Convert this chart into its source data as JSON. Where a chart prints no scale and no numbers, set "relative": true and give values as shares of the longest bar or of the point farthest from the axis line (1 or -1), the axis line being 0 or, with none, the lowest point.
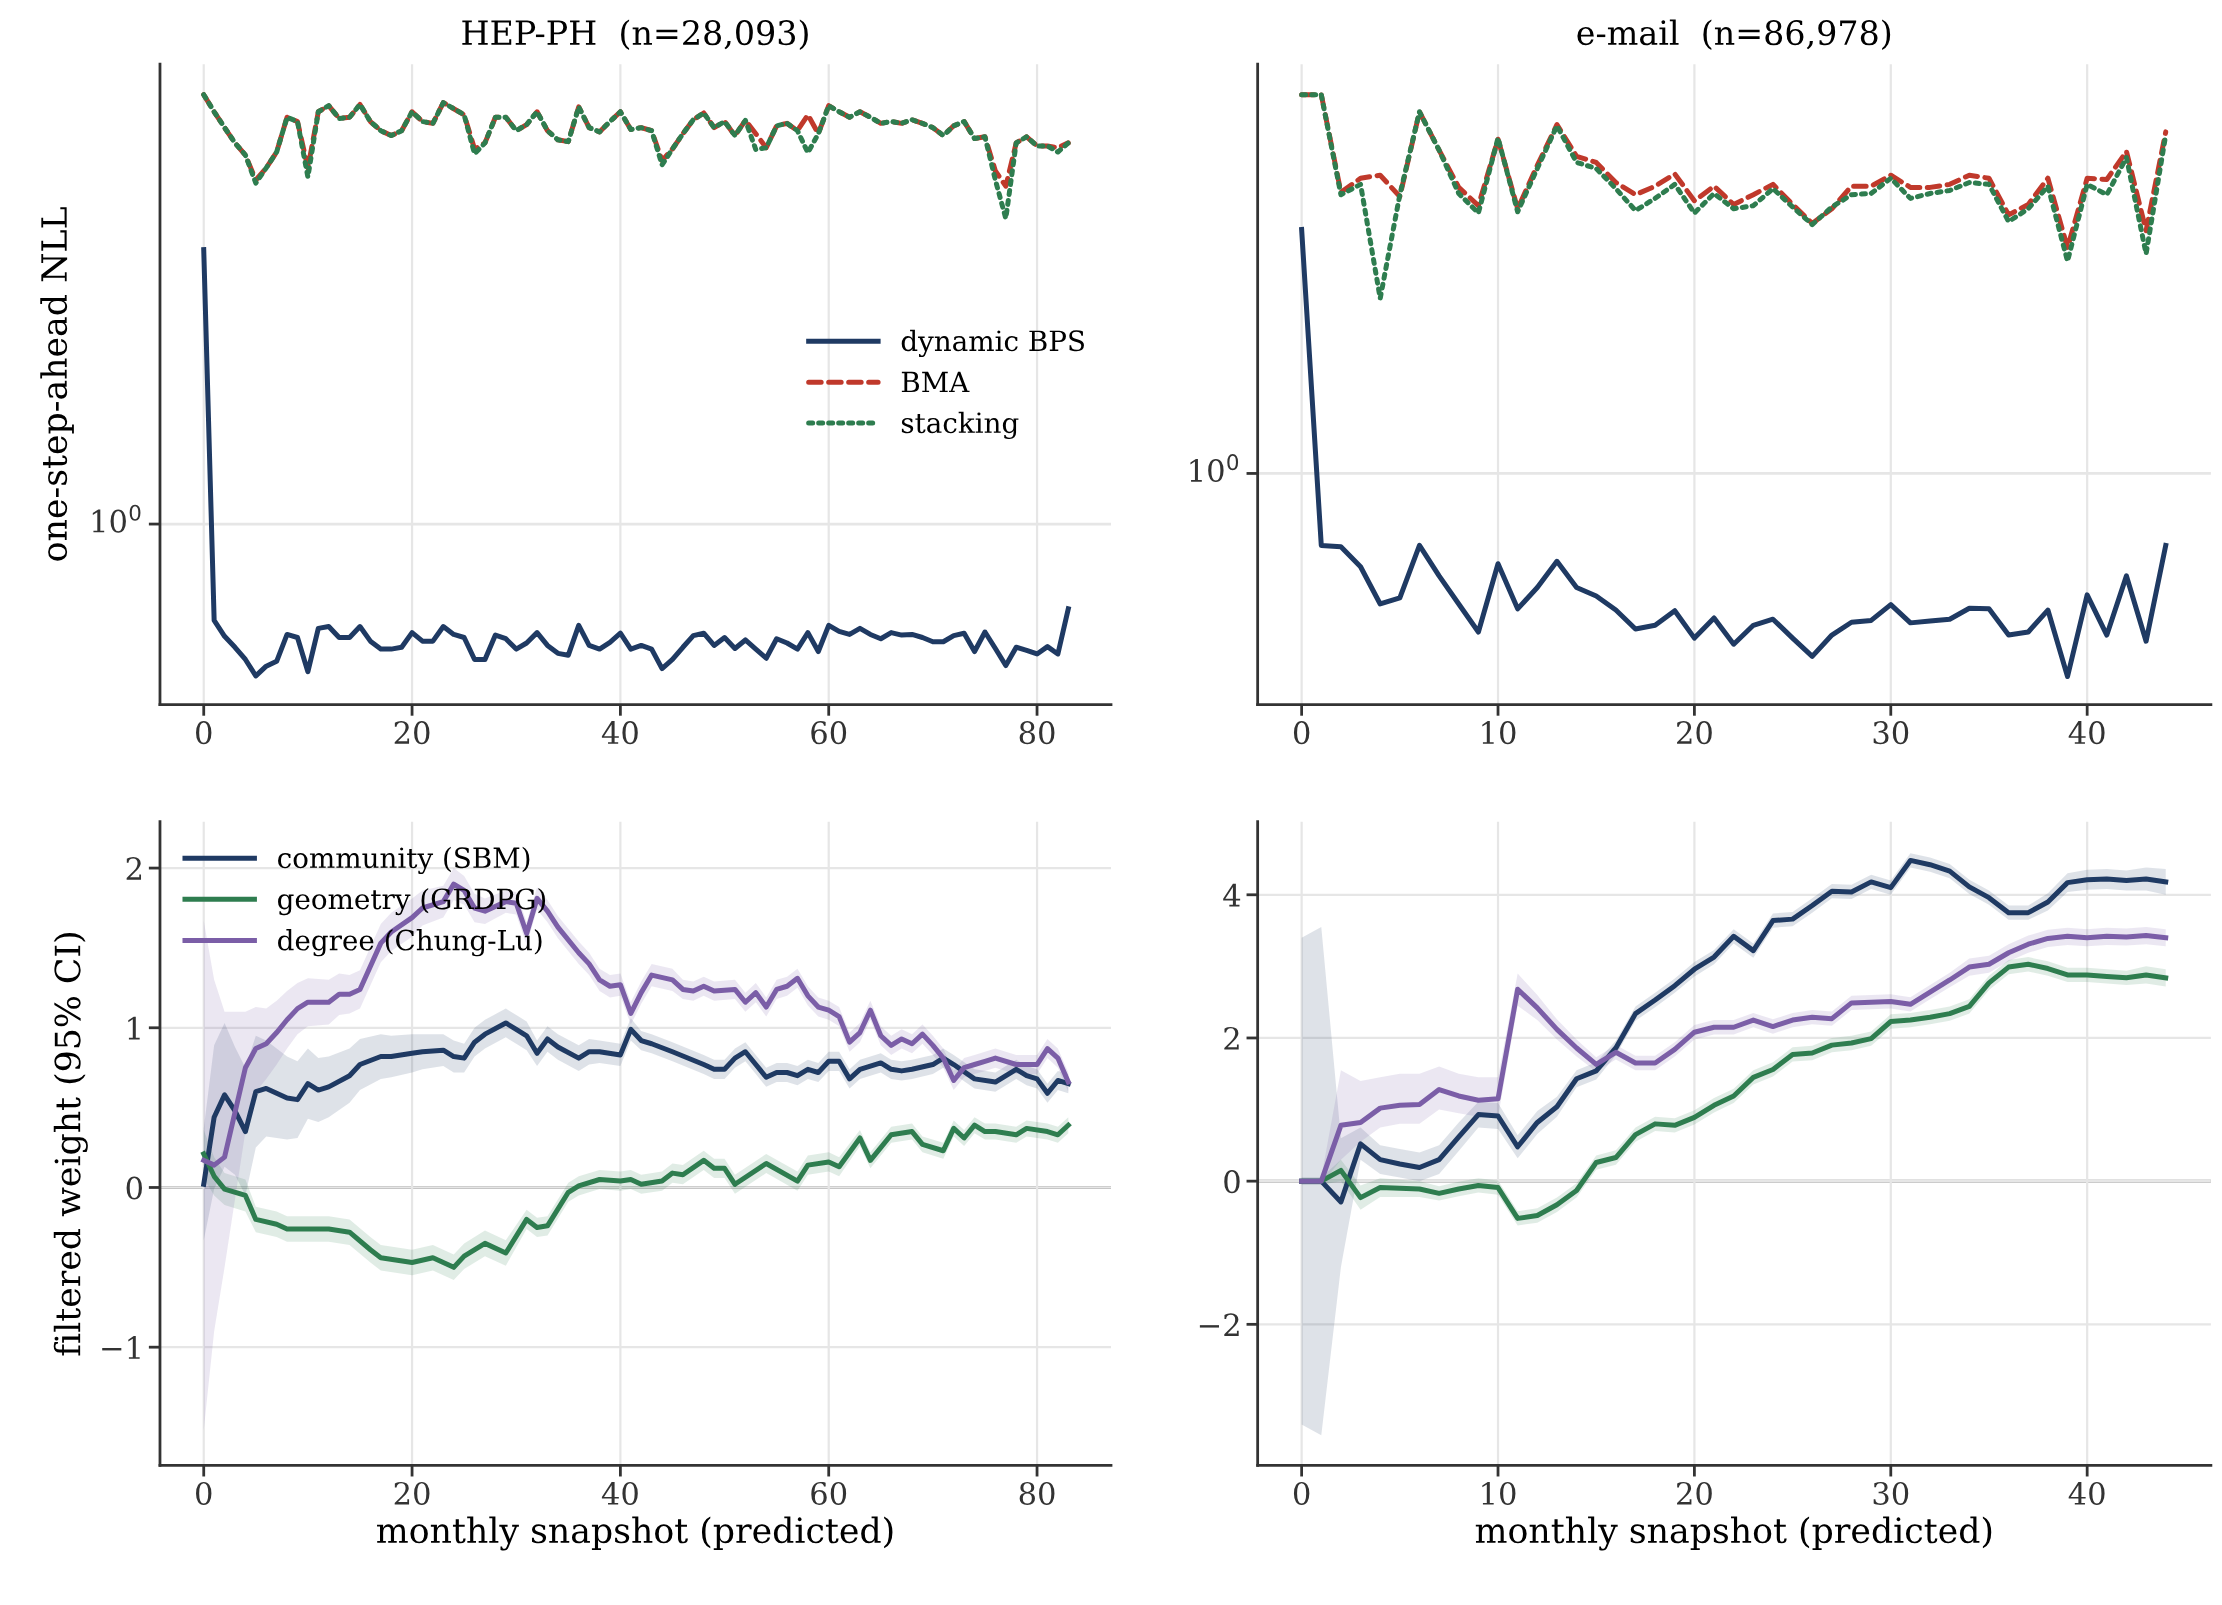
{
  "chart_data": [
    {
      "type": "line",
      "title": "HEP-PH  (n=28,093)",
      "ylabel": "one-step-ahead NLL",
      "relative": true,
      "grid": "x",
      "legend": "right",
      "x": [
        0,
        1,
        2,
        3,
        4,
        5,
        6,
        7,
        8,
        9,
        10,
        11,
        12,
        13,
        14,
        15,
        16,
        17,
        18,
        19,
        20,
        21,
        22,
        23,
        24,
        25,
        26,
        27,
        28,
        29,
        30,
        31,
        32,
        33,
        34,
        35,
        36,
        37,
        38,
        39,
        40,
        41,
        42,
        43,
        44,
        45,
        46,
        47,
        48,
        49,
        50,
        51,
        52,
        53,
        54,
        55,
        56,
        57,
        58,
        59,
        60,
        61,
        62,
        63,
        64,
        65,
        66,
        67,
        68,
        69,
        70,
        71,
        72,
        73,
        74,
        75,
        76,
        77,
        78,
        79,
        80,
        81,
        82,
        83
      ],
      "xlim": [
        -4.2,
        87.1
      ],
      "xticks": [
        0,
        20,
        40,
        60,
        80
      ],
      "ref_lines": [
        {
          "axis": "y",
          "value": 0.296,
          "label": "10$^{0}$",
          "color": "#e6e6e6"
        }
      ],
      "series": [
        {
          "name": "dynamic BPS",
          "color": "#1f3a63",
          "line_style": "solid",
          "values": [
            0.746,
            0.138,
            0.112,
            0.094,
            0.074,
            0.047,
            0.063,
            0.071,
            0.115,
            0.11,
            0.054,
            0.125,
            0.128,
            0.11,
            0.11,
            0.128,
            0.104,
            0.091,
            0.091,
            0.094,
            0.118,
            0.104,
            0.104,
            0.128,
            0.115,
            0.11,
            0.074,
            0.074,
            0.114,
            0.108,
            0.091,
            0.101,
            0.118,
            0.097,
            0.084,
            0.081,
            0.13,
            0.097,
            0.091,
            0.102,
            0.117,
            0.091,
            0.097,
            0.091,
            0.059,
            0.074,
            0.094,
            0.113,
            0.117,
            0.097,
            0.11,
            0.092,
            0.106,
            0.091,
            0.076,
            0.108,
            0.101,
            0.091,
            0.118,
            0.087,
            0.13,
            0.12,
            0.115,
            0.125,
            0.115,
            0.108,
            0.118,
            0.114,
            0.115,
            0.11,
            0.103,
            0.103,
            0.113,
            0.117,
            0.087,
            0.119,
            0.092,
            0.064,
            0.094,
            0.089,
            0.083,
            0.095,
            0.083,
            0.157
          ]
        },
        {
          "name": "BMA",
          "color": "#c0392b",
          "line_style": "dashed",
          "values": [
            1.0,
            0.972,
            0.946,
            0.921,
            0.901,
            0.86,
            0.88,
            0.906,
            0.963,
            0.956,
            0.88,
            0.972,
            0.982,
            0.961,
            0.963,
            0.984,
            0.956,
            0.941,
            0.933,
            0.941,
            0.972,
            0.956,
            0.953,
            0.987,
            0.977,
            0.967,
            0.911,
            0.921,
            0.963,
            0.963,
            0.941,
            0.951,
            0.972,
            0.941,
            0.926,
            0.923,
            0.98,
            0.946,
            0.939,
            0.956,
            0.972,
            0.943,
            0.946,
            0.941,
            0.892,
            0.911,
            0.936,
            0.959,
            0.97,
            0.946,
            0.956,
            0.933,
            0.958,
            0.936,
            0.913,
            0.949,
            0.953,
            0.941,
            0.967,
            0.936,
            0.982,
            0.972,
            0.963,
            0.972,
            0.963,
            0.953,
            0.956,
            0.953,
            0.959,
            0.953,
            0.946,
            0.933,
            0.949,
            0.956,
            0.928,
            0.931,
            0.875,
            0.85,
            0.921,
            0.931,
            0.916,
            0.916,
            0.913,
            0.921
          ]
        },
        {
          "name": "stacking",
          "color": "#2e7d4f",
          "line_style": "dotted",
          "values": [
            1.0,
            0.972,
            0.946,
            0.921,
            0.901,
            0.855,
            0.88,
            0.906,
            0.963,
            0.956,
            0.865,
            0.972,
            0.982,
            0.961,
            0.963,
            0.984,
            0.956,
            0.941,
            0.933,
            0.941,
            0.972,
            0.956,
            0.953,
            0.987,
            0.977,
            0.967,
            0.903,
            0.921,
            0.963,
            0.963,
            0.941,
            0.951,
            0.972,
            0.941,
            0.926,
            0.923,
            0.98,
            0.946,
            0.939,
            0.956,
            0.972,
            0.943,
            0.946,
            0.941,
            0.885,
            0.911,
            0.936,
            0.959,
            0.97,
            0.946,
            0.956,
            0.933,
            0.958,
            0.91,
            0.913,
            0.949,
            0.953,
            0.941,
            0.905,
            0.936,
            0.982,
            0.972,
            0.963,
            0.972,
            0.963,
            0.953,
            0.956,
            0.953,
            0.959,
            0.953,
            0.946,
            0.933,
            0.949,
            0.956,
            0.928,
            0.931,
            0.86,
            0.797,
            0.921,
            0.931,
            0.916,
            0.916,
            0.906,
            0.921
          ]
        }
      ]
    },
    {
      "type": "line",
      "title": "e-mail  (n=86,978)",
      "relative": true,
      "grid": "x",
      "x": [
        0,
        1,
        2,
        3,
        4,
        5,
        6,
        7,
        8,
        9,
        10,
        11,
        12,
        13,
        14,
        15,
        16,
        17,
        18,
        19,
        20,
        21,
        22,
        23,
        24,
        25,
        26,
        27,
        28,
        29,
        30,
        31,
        32,
        33,
        34,
        35,
        36,
        37,
        38,
        39,
        40,
        41,
        42,
        43,
        44
      ],
      "xlim": [
        -2.24,
        46.3
      ],
      "xticks": [
        0,
        10,
        20,
        30,
        40
      ],
      "ref_lines": [
        {
          "axis": "y",
          "value": 0.379,
          "label": "10$^{0}$",
          "color": "#e6e6e6"
        }
      ],
      "series": [
        {
          "color": "#1f3a63",
          "line_style": "solid",
          "values": [
            0.779,
            0.261,
            0.259,
            0.226,
            0.165,
            0.175,
            0.261,
            0.211,
            0.165,
            0.119,
            0.231,
            0.157,
            0.192,
            0.235,
            0.192,
            0.178,
            0.155,
            0.124,
            0.13,
            0.154,
            0.109,
            0.142,
            0.099,
            0.13,
            0.14,
            0.109,
            0.079,
            0.114,
            0.135,
            0.138,
            0.164,
            0.134,
            0.137,
            0.14,
            0.158,
            0.157,
            0.114,
            0.119,
            0.155,
            0.046,
            0.18,
            0.114,
            0.211,
            0.104,
            0.261
          ]
        },
        {
          "color": "#c0392b",
          "line_style": "dashed",
          "values": [
            1.0,
            1.0,
            0.84,
            0.863,
            0.868,
            0.833,
            0.972,
            0.909,
            0.848,
            0.818,
            0.927,
            0.813,
            0.884,
            0.951,
            0.899,
            0.889,
            0.856,
            0.836,
            0.85,
            0.87,
            0.826,
            0.85,
            0.82,
            0.836,
            0.853,
            0.82,
            0.789,
            0.813,
            0.85,
            0.85,
            0.868,
            0.848,
            0.848,
            0.853,
            0.868,
            0.863,
            0.803,
            0.82,
            0.863,
            0.749,
            0.863,
            0.861,
            0.907,
            0.777,
            0.939
          ]
        },
        {
          "color": "#2e7d4f",
          "line_style": "dotted",
          "values": [
            1.0,
            1.0,
            0.836,
            0.853,
            0.666,
            0.836,
            0.972,
            0.909,
            0.838,
            0.806,
            0.929,
            0.808,
            0.879,
            0.949,
            0.889,
            0.879,
            0.846,
            0.81,
            0.83,
            0.853,
            0.806,
            0.838,
            0.813,
            0.818,
            0.846,
            0.816,
            0.787,
            0.816,
            0.836,
            0.838,
            0.863,
            0.83,
            0.838,
            0.843,
            0.856,
            0.853,
            0.792,
            0.813,
            0.85,
            0.727,
            0.853,
            0.836,
            0.897,
            0.739,
            0.934
          ]
        }
      ]
    },
    {
      "type": "line",
      "xlabel": "monthly snapshot (predicted)",
      "ylabel": "filtered weight (95% CI)",
      "grid": true,
      "legend": "top left",
      "xlim": [
        -4.2,
        87.1
      ],
      "xticks": [
        0,
        20,
        40,
        60,
        80
      ],
      "ylim": [
        -1.74,
        2.29
      ],
      "yticks": [
        {
          "value": -1,
          "label": "−1"
        },
        0,
        1,
        2
      ],
      "ref_lines": [
        {
          "axis": "y",
          "value": 0,
          "color": "#888888"
        }
      ],
      "series": [
        {
          "name": "community (SBM)",
          "color": "#1f3a63",
          "x": [
            0,
            1,
            2,
            3,
            4,
            5,
            6,
            7,
            8,
            9,
            10,
            11,
            12,
            14,
            15,
            17,
            18,
            20,
            21,
            23,
            24,
            25,
            26,
            27,
            29,
            30,
            31,
            32,
            33,
            34,
            36,
            37,
            38,
            40,
            41,
            42,
            43,
            45,
            48,
            49,
            50,
            51,
            52,
            53,
            54,
            55,
            56,
            57,
            58,
            59,
            60,
            61,
            62,
            63,
            65,
            66,
            67,
            68,
            70,
            71,
            72,
            74,
            76,
            78,
            79,
            80,
            81,
            82,
            83
          ],
          "values": [
            0.02,
            0.44,
            0.58,
            0.48,
            0.35,
            0.6,
            0.62,
            0.59,
            0.56,
            0.55,
            0.65,
            0.61,
            0.63,
            0.7,
            0.77,
            0.82,
            0.82,
            0.84,
            0.85,
            0.86,
            0.82,
            0.81,
            0.91,
            0.96,
            1.03,
            0.99,
            0.95,
            0.84,
            0.93,
            0.88,
            0.81,
            0.85,
            0.85,
            0.83,
            0.99,
            0.92,
            0.9,
            0.85,
            0.77,
            0.74,
            0.74,
            0.81,
            0.85,
            0.77,
            0.69,
            0.72,
            0.72,
            0.7,
            0.74,
            0.72,
            0.79,
            0.79,
            0.68,
            0.74,
            0.78,
            0.74,
            0.73,
            0.74,
            0.77,
            0.81,
            0.77,
            0.68,
            0.66,
            0.74,
            0.7,
            0.68,
            0.59,
            0.67,
            0.65
          ],
          "lower": [
            -0.33,
            -0.01,
            0.13,
            0.08,
            -0.05,
            0.25,
            0.32,
            0.31,
            0.3,
            0.31,
            0.43,
            0.41,
            0.44,
            0.53,
            0.61,
            0.68,
            0.69,
            0.72,
            0.74,
            0.76,
            0.72,
            0.72,
            0.82,
            0.87,
            0.94,
            0.9,
            0.86,
            0.76,
            0.85,
            0.8,
            0.73,
            0.77,
            0.78,
            0.76,
            0.92,
            0.86,
            0.84,
            0.79,
            0.71,
            0.68,
            0.68,
            0.75,
            0.79,
            0.71,
            0.63,
            0.66,
            0.66,
            0.64,
            0.68,
            0.66,
            0.73,
            0.73,
            0.62,
            0.68,
            0.72,
            0.68,
            0.67,
            0.68,
            0.71,
            0.75,
            0.71,
            0.62,
            0.6,
            0.68,
            0.64,
            0.62,
            0.53,
            0.61,
            0.59
          ],
          "upper": [
            0.37,
            0.89,
            1.03,
            0.88,
            0.75,
            0.95,
            0.92,
            0.87,
            0.82,
            0.79,
            0.87,
            0.81,
            0.82,
            0.87,
            0.93,
            0.96,
            0.95,
            0.96,
            0.96,
            0.96,
            0.92,
            0.9,
            1.0,
            1.05,
            1.12,
            1.08,
            1.04,
            0.92,
            1.01,
            0.96,
            0.89,
            0.93,
            0.92,
            0.9,
            1.06,
            0.98,
            0.96,
            0.91,
            0.83,
            0.8,
            0.8,
            0.87,
            0.91,
            0.83,
            0.75,
            0.78,
            0.78,
            0.76,
            0.8,
            0.78,
            0.85,
            0.85,
            0.74,
            0.8,
            0.84,
            0.8,
            0.79,
            0.8,
            0.83,
            0.87,
            0.83,
            0.74,
            0.72,
            0.8,
            0.76,
            0.74,
            0.65,
            0.73,
            0.71
          ]
        },
        {
          "name": "geometry (GRDPG)",
          "color": "#2e7d4f",
          "x": [
            0,
            1,
            2,
            4,
            5,
            7,
            8,
            10,
            12,
            14,
            16,
            17,
            20,
            22,
            24,
            25,
            27,
            29,
            31,
            32,
            33,
            35,
            36,
            38,
            40,
            41,
            42,
            44,
            45,
            46,
            48,
            49,
            50,
            51,
            54,
            57,
            58,
            60,
            61,
            63,
            64,
            66,
            68,
            69,
            71,
            72,
            73,
            74,
            75,
            76,
            78,
            79,
            81,
            82,
            83
          ],
          "values": [
            0.21,
            0.07,
            -0.01,
            -0.05,
            -0.2,
            -0.23,
            -0.26,
            -0.26,
            -0.26,
            -0.28,
            -0.39,
            -0.44,
            -0.47,
            -0.44,
            -0.5,
            -0.43,
            -0.35,
            -0.41,
            -0.2,
            -0.25,
            -0.24,
            -0.03,
            0.01,
            0.05,
            0.04,
            0.05,
            0.02,
            0.04,
            0.09,
            0.08,
            0.17,
            0.12,
            0.12,
            0.02,
            0.15,
            0.04,
            0.14,
            0.16,
            0.13,
            0.31,
            0.17,
            0.33,
            0.35,
            0.27,
            0.23,
            0.37,
            0.31,
            0.39,
            0.35,
            0.35,
            0.33,
            0.37,
            0.35,
            0.33,
            0.39
          ],
          "lower": [
            0.06,
            -0.05,
            -0.11,
            -0.15,
            -0.28,
            -0.31,
            -0.34,
            -0.34,
            -0.34,
            -0.36,
            -0.47,
            -0.52,
            -0.55,
            -0.52,
            -0.58,
            -0.51,
            -0.43,
            -0.49,
            -0.26,
            -0.31,
            -0.3,
            -0.09,
            -0.05,
            -0.01,
            -0.02,
            -0.01,
            -0.04,
            -0.02,
            0.03,
            0.02,
            0.11,
            0.06,
            0.06,
            -0.04,
            0.09,
            -0.02,
            0.08,
            0.1,
            0.07,
            0.26,
            0.12,
            0.28,
            0.3,
            0.22,
            0.18,
            0.32,
            0.26,
            0.34,
            0.3,
            0.3,
            0.28,
            0.32,
            0.3,
            0.28,
            0.34
          ],
          "upper": [
            0.36,
            0.19,
            0.09,
            0.05,
            -0.12,
            -0.15,
            -0.18,
            -0.18,
            -0.18,
            -0.2,
            -0.31,
            -0.36,
            -0.39,
            -0.36,
            -0.42,
            -0.35,
            -0.27,
            -0.33,
            -0.14,
            -0.19,
            -0.18,
            0.03,
            0.07,
            0.11,
            0.1,
            0.11,
            0.08,
            0.1,
            0.15,
            0.14,
            0.23,
            0.18,
            0.18,
            0.08,
            0.21,
            0.1,
            0.2,
            0.22,
            0.19,
            0.36,
            0.22,
            0.38,
            0.4,
            0.32,
            0.28,
            0.42,
            0.36,
            0.44,
            0.4,
            0.4,
            0.38,
            0.42,
            0.4,
            0.38,
            0.44
          ]
        },
        {
          "name": "degree (Chung-Lu)",
          "color": "#7b5ea7",
          "x": [
            0,
            1,
            2,
            4,
            5,
            6,
            7,
            8,
            9,
            10,
            12,
            13,
            14,
            15,
            17,
            18,
            20,
            21,
            23,
            24,
            25,
            26,
            27,
            29,
            30,
            31,
            32,
            33,
            34,
            36,
            37,
            38,
            39,
            40,
            41,
            42,
            43,
            45,
            46,
            47,
            48,
            49,
            51,
            52,
            53,
            54,
            55,
            56,
            57,
            58,
            59,
            60,
            61,
            62,
            63,
            64,
            65,
            66,
            67,
            68,
            69,
            70,
            71,
            72,
            73,
            74,
            75,
            76,
            78,
            79,
            80,
            81,
            82,
            83
          ],
          "values": [
            0.17,
            0.14,
            0.19,
            0.75,
            0.87,
            0.9,
            0.97,
            1.05,
            1.12,
            1.16,
            1.16,
            1.21,
            1.21,
            1.24,
            1.53,
            1.6,
            1.69,
            1.75,
            1.79,
            1.9,
            1.86,
            1.75,
            1.73,
            1.79,
            1.78,
            1.59,
            1.81,
            1.73,
            1.63,
            1.47,
            1.4,
            1.3,
            1.26,
            1.27,
            1.09,
            1.22,
            1.33,
            1.3,
            1.24,
            1.23,
            1.26,
            1.23,
            1.24,
            1.16,
            1.22,
            1.13,
            1.24,
            1.26,
            1.31,
            1.2,
            1.13,
            1.11,
            1.07,
            0.91,
            0.97,
            1.11,
            0.95,
            0.89,
            0.93,
            0.9,
            0.96,
            0.89,
            0.81,
            0.67,
            0.75,
            0.77,
            0.79,
            0.81,
            0.77,
            0.77,
            0.77,
            0.87,
            0.81,
            0.66
          ],
          "lower": [
            -1.52,
            -0.9,
            -0.5,
            0.35,
            0.6,
            0.68,
            0.77,
            0.87,
            0.96,
            1.01,
            1.02,
            1.08,
            1.09,
            1.12,
            1.41,
            1.48,
            1.57,
            1.64,
            1.69,
            1.8,
            1.77,
            1.66,
            1.65,
            1.72,
            1.71,
            1.52,
            1.74,
            1.66,
            1.56,
            1.4,
            1.33,
            1.23,
            1.19,
            1.2,
            1.02,
            1.15,
            1.26,
            1.23,
            1.18,
            1.17,
            1.2,
            1.17,
            1.18,
            1.1,
            1.16,
            1.07,
            1.18,
            1.2,
            1.25,
            1.14,
            1.07,
            1.05,
            1.01,
            0.85,
            0.91,
            1.05,
            0.89,
            0.83,
            0.87,
            0.84,
            0.9,
            0.83,
            0.75,
            0.61,
            0.69,
            0.71,
            0.73,
            0.75,
            0.71,
            0.71,
            0.71,
            0.81,
            0.75,
            0.6
          ],
          "upper": [
            1.67,
            1.3,
            1.1,
            1.1,
            1.13,
            1.12,
            1.17,
            1.23,
            1.28,
            1.31,
            1.3,
            1.34,
            1.33,
            1.36,
            1.65,
            1.72,
            1.81,
            1.86,
            1.89,
            2.0,
            1.95,
            1.84,
            1.81,
            1.86,
            1.85,
            1.66,
            1.88,
            1.8,
            1.7,
            1.54,
            1.47,
            1.37,
            1.33,
            1.34,
            1.16,
            1.29,
            1.4,
            1.37,
            1.3,
            1.29,
            1.32,
            1.29,
            1.3,
            1.22,
            1.28,
            1.19,
            1.3,
            1.32,
            1.37,
            1.26,
            1.19,
            1.17,
            1.13,
            0.97,
            1.03,
            1.17,
            1.01,
            0.95,
            0.99,
            0.96,
            1.02,
            0.95,
            0.87,
            0.73,
            0.81,
            0.83,
            0.85,
            0.87,
            0.83,
            0.83,
            0.83,
            0.93,
            0.87,
            0.72
          ]
        }
      ]
    },
    {
      "type": "line",
      "xlabel": "monthly snapshot (predicted)",
      "grid": true,
      "x": [
        0,
        1,
        2,
        3,
        4,
        5,
        6,
        7,
        8,
        9,
        10,
        11,
        12,
        13,
        14,
        15,
        16,
        17,
        18,
        19,
        20,
        21,
        22,
        23,
        24,
        25,
        26,
        27,
        28,
        29,
        30,
        31,
        32,
        33,
        34,
        35,
        36,
        37,
        38,
        39,
        40,
        41,
        42,
        43,
        44
      ],
      "xlim": [
        -2.24,
        46.3
      ],
      "xticks": [
        0,
        10,
        20,
        30,
        40
      ],
      "ylim": [
        -3.97,
        5.02
      ],
      "yticks": [
        {
          "value": -2,
          "label": "−2"
        },
        0,
        2,
        4
      ],
      "ref_lines": [
        {
          "axis": "y",
          "value": 0,
          "color": "#888888"
        }
      ],
      "series": [
        {
          "color": "#1f3a63",
          "values": [
            0,
            0,
            -0.29,
            0.52,
            0.3,
            0.24,
            0.19,
            0.3,
            0.62,
            0.93,
            0.91,
            0.48,
            0.82,
            1.04,
            1.43,
            1.54,
            1.86,
            2.34,
            2.53,
            2.73,
            2.96,
            3.13,
            3.42,
            3.22,
            3.64,
            3.66,
            3.85,
            4.05,
            4.04,
            4.18,
            4.1,
            4.48,
            4.42,
            4.33,
            4.11,
            3.96,
            3.75,
            3.75,
            3.9,
            4.17,
            4.21,
            4.22,
            4.2,
            4.22,
            4.18
          ],
          "lower": [
            -3.4,
            -3.55,
            -1.2,
            0.3,
            0.1,
            0.05,
            0.0,
            0.1,
            0.42,
            0.75,
            0.73,
            0.32,
            0.66,
            0.9,
            1.31,
            1.42,
            1.76,
            2.24,
            2.43,
            2.63,
            2.86,
            3.03,
            3.32,
            3.12,
            3.54,
            3.56,
            3.75,
            3.95,
            3.94,
            4.08,
            4.0,
            4.38,
            4.32,
            4.23,
            4.01,
            3.86,
            3.65,
            3.65,
            3.78,
            4.04,
            4.07,
            4.08,
            4.06,
            4.06,
            4.0
          ],
          "upper": [
            3.4,
            3.55,
            0.6,
            0.75,
            0.5,
            0.45,
            0.4,
            0.5,
            0.82,
            1.11,
            1.09,
            0.64,
            0.98,
            1.18,
            1.55,
            1.66,
            1.96,
            2.44,
            2.63,
            2.83,
            3.06,
            3.23,
            3.52,
            3.32,
            3.74,
            3.76,
            3.95,
            4.15,
            4.14,
            4.28,
            4.2,
            4.58,
            4.52,
            4.43,
            4.21,
            4.06,
            3.85,
            3.85,
            4.02,
            4.3,
            4.35,
            4.36,
            4.34,
            4.38,
            4.36
          ]
        },
        {
          "color": "#2e7d4f",
          "values": [
            0,
            0,
            0.15,
            -0.23,
            -0.09,
            -0.1,
            -0.11,
            -0.17,
            -0.11,
            -0.06,
            -0.09,
            -0.52,
            -0.48,
            -0.33,
            -0.13,
            0.26,
            0.33,
            0.65,
            0.8,
            0.78,
            0.89,
            1.06,
            1.19,
            1.45,
            1.56,
            1.77,
            1.79,
            1.9,
            1.93,
            1.99,
            2.23,
            2.25,
            2.29,
            2.34,
            2.44,
            2.77,
            2.99,
            3.03,
            2.97,
            2.88,
            2.88,
            2.86,
            2.84,
            2.88,
            2.84
          ],
          "lower": [
            -0.05,
            -0.05,
            0.0,
            -0.4,
            -0.22,
            -0.22,
            -0.22,
            -0.27,
            -0.21,
            -0.16,
            -0.19,
            -0.62,
            -0.58,
            -0.43,
            -0.23,
            0.16,
            0.23,
            0.55,
            0.7,
            0.68,
            0.79,
            0.96,
            1.09,
            1.35,
            1.46,
            1.67,
            1.69,
            1.8,
            1.83,
            1.89,
            2.13,
            2.15,
            2.19,
            2.24,
            2.34,
            2.67,
            2.89,
            2.93,
            2.87,
            2.78,
            2.78,
            2.76,
            2.74,
            2.76,
            2.72
          ],
          "upper": [
            0.05,
            0.05,
            0.3,
            -0.06,
            0.04,
            0.02,
            0.0,
            -0.07,
            -0.01,
            0.04,
            0.01,
            -0.42,
            -0.38,
            -0.23,
            -0.03,
            0.36,
            0.43,
            0.75,
            0.9,
            0.88,
            0.99,
            1.16,
            1.29,
            1.55,
            1.66,
            1.87,
            1.89,
            2.0,
            2.03,
            2.09,
            2.33,
            2.35,
            2.39,
            2.44,
            2.54,
            2.87,
            3.09,
            3.13,
            3.07,
            2.98,
            2.98,
            2.96,
            2.94,
            3.0,
            2.96
          ]
        },
        {
          "color": "#7b5ea7",
          "values": [
            0,
            0,
            0.78,
            0.82,
            1.02,
            1.06,
            1.07,
            1.28,
            1.19,
            1.13,
            1.15,
            2.68,
            2.42,
            2.12,
            1.86,
            1.63,
            1.8,
            1.65,
            1.65,
            1.84,
            2.08,
            2.15,
            2.15,
            2.25,
            2.16,
            2.25,
            2.29,
            2.27,
            2.49,
            2.5,
            2.51,
            2.47,
            2.64,
            2.81,
            2.99,
            3.03,
            3.19,
            3.31,
            3.39,
            3.42,
            3.4,
            3.42,
            3.41,
            3.43,
            3.4
          ],
          "lower": [
            -0.05,
            -0.05,
            0.3,
            0.55,
            0.75,
            0.8,
            0.8,
            1.0,
            0.95,
            0.9,
            0.9,
            2.45,
            2.25,
            1.98,
            1.74,
            1.53,
            1.7,
            1.55,
            1.55,
            1.74,
            1.98,
            2.05,
            2.05,
            2.15,
            2.06,
            2.15,
            2.19,
            2.17,
            2.39,
            2.4,
            2.41,
            2.37,
            2.54,
            2.71,
            2.87,
            2.91,
            3.07,
            3.19,
            3.27,
            3.3,
            3.28,
            3.3,
            3.29,
            3.31,
            3.28
          ],
          "upper": [
            0.05,
            0.05,
            1.55,
            1.4,
            1.45,
            1.5,
            1.5,
            1.6,
            1.5,
            1.45,
            1.45,
            2.9,
            2.6,
            2.26,
            1.98,
            1.73,
            1.9,
            1.75,
            1.75,
            1.94,
            2.18,
            2.25,
            2.25,
            2.35,
            2.26,
            2.35,
            2.39,
            2.37,
            2.59,
            2.6,
            2.61,
            2.57,
            2.74,
            2.91,
            3.11,
            3.15,
            3.31,
            3.43,
            3.51,
            3.54,
            3.52,
            3.54,
            3.53,
            3.55,
            3.52
          ]
        }
      ]
    }
  ]
}
